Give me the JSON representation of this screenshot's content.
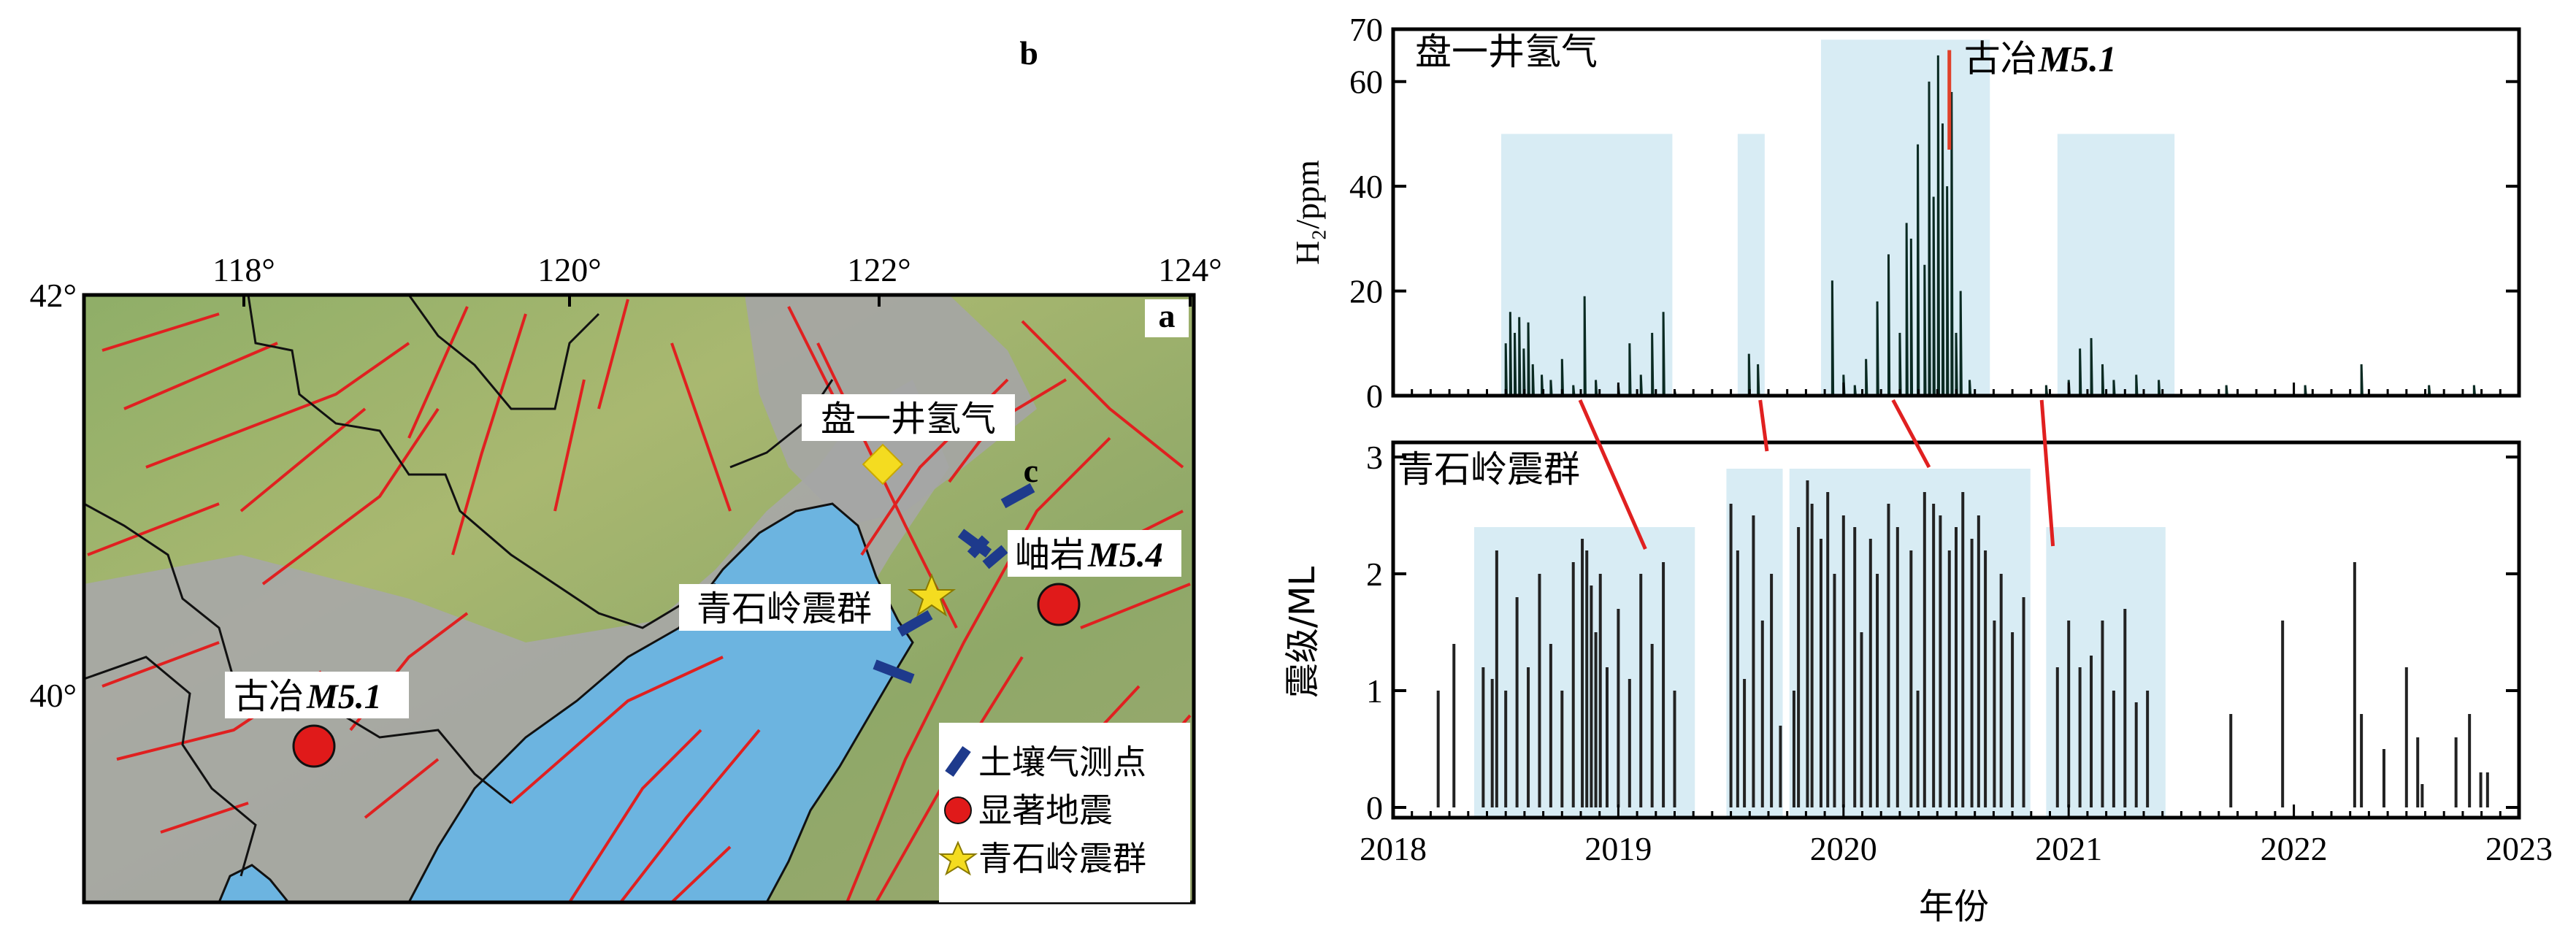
{
  "panel_a": {
    "letter": "a",
    "lon_ticks": [
      "118°",
      "120°",
      "122°",
      "124°"
    ],
    "lat_ticks": [
      "42°",
      "40°"
    ],
    "labels": {
      "panshan": "盘一井氢气",
      "qingshiling": "青石岭震群",
      "xiuyan": "岫岩",
      "xiuyan_mag": "M5.4",
      "guye": "古冶",
      "guye_mag": "M5.1"
    },
    "legend": [
      {
        "symbol": "blue-bar",
        "label": "土壤气测点"
      },
      {
        "symbol": "red-circle",
        "label": "显著地震"
      },
      {
        "symbol": "yellow-star",
        "label": "青石岭震群"
      }
    ],
    "colors": {
      "sea": "#6cb4e0",
      "fault": "#e02020",
      "boundary": "#111111",
      "yellow": "#f4dc20",
      "blue": "#1e3a8c",
      "red": "#e01a1a"
    }
  },
  "chart_data": [
    {
      "type": "line",
      "panel": "b",
      "title": "盘一井氢气",
      "ylabel": "H₂/ppm",
      "ylim": [
        0,
        70
      ],
      "yticks": [
        "0",
        "20",
        "40",
        "60",
        "70"
      ],
      "xlim": [
        2018,
        2023
      ],
      "annotation": {
        "text_cn": "古冶",
        "text_mag": "M5.1",
        "x": 2020.47
      },
      "shaded_periods": [
        [
          2018.48,
          2019.24,
          50
        ],
        [
          2019.53,
          2019.65,
          50
        ],
        [
          2019.9,
          2020.65,
          68
        ],
        [
          2020.95,
          2021.47,
          50
        ]
      ],
      "series": [
        {
          "values_note": "",
          "points": [
            [
              2018.5,
              10
            ],
            [
              2018.52,
              16
            ],
            [
              2018.54,
              12
            ],
            [
              2018.56,
              15
            ],
            [
              2018.58,
              9
            ],
            [
              2018.6,
              14
            ],
            [
              2018.62,
              6
            ],
            [
              2018.66,
              4
            ],
            [
              2018.7,
              3
            ],
            [
              2018.75,
              7
            ],
            [
              2018.8,
              2
            ],
            [
              2018.85,
              19
            ],
            [
              2018.9,
              3
            ],
            [
              2019.0,
              2
            ],
            [
              2019.05,
              10
            ],
            [
              2019.1,
              4
            ],
            [
              2019.15,
              12
            ],
            [
              2019.2,
              16
            ],
            [
              2019.25,
              1
            ],
            [
              2019.58,
              8
            ],
            [
              2019.62,
              6
            ],
            [
              2019.95,
              22
            ],
            [
              2020.0,
              4
            ],
            [
              2020.05,
              2
            ],
            [
              2020.1,
              7
            ],
            [
              2020.15,
              18
            ],
            [
              2020.2,
              27
            ],
            [
              2020.25,
              12
            ],
            [
              2020.28,
              33
            ],
            [
              2020.3,
              30
            ],
            [
              2020.33,
              48
            ],
            [
              2020.36,
              25
            ],
            [
              2020.38,
              60
            ],
            [
              2020.4,
              38
            ],
            [
              2020.42,
              65
            ],
            [
              2020.44,
              52
            ],
            [
              2020.46,
              40
            ],
            [
              2020.48,
              58
            ],
            [
              2020.5,
              12
            ],
            [
              2020.52,
              20
            ],
            [
              2020.56,
              3
            ],
            [
              2020.9,
              2
            ],
            [
              2021.0,
              3
            ],
            [
              2021.05,
              9
            ],
            [
              2021.1,
              11
            ],
            [
              2021.15,
              6
            ],
            [
              2021.2,
              3
            ],
            [
              2021.3,
              4
            ],
            [
              2021.4,
              3
            ],
            [
              2021.7,
              2
            ],
            [
              2022.05,
              2
            ],
            [
              2022.3,
              6
            ],
            [
              2022.6,
              2
            ],
            [
              2022.8,
              2
            ]
          ]
        }
      ]
    },
    {
      "type": "bar",
      "panel": "c",
      "title": "青石岭震群",
      "ylabel": "震级/ML",
      "xlabel": "年份",
      "ylim": [
        0,
        3
      ],
      "yticks": [
        "0",
        "1",
        "2",
        "3"
      ],
      "xlim": [
        2018,
        2023
      ],
      "xticks": [
        "2018",
        "2019",
        "2020",
        "2021",
        "2022",
        "2023"
      ],
      "shaded_periods": [
        [
          2018.36,
          2019.34,
          2.4
        ],
        [
          2019.48,
          2019.73,
          2.9
        ],
        [
          2019.76,
          2020.83,
          2.9
        ],
        [
          2020.9,
          2021.43,
          2.4
        ]
      ],
      "events": [
        [
          2018.2,
          1.0
        ],
        [
          2018.27,
          1.4
        ],
        [
          2018.4,
          1.2
        ],
        [
          2018.44,
          1.1
        ],
        [
          2018.46,
          2.2
        ],
        [
          2018.5,
          1.0
        ],
        [
          2018.55,
          1.8
        ],
        [
          2018.6,
          1.2
        ],
        [
          2018.65,
          2.0
        ],
        [
          2018.7,
          1.4
        ],
        [
          2018.75,
          1.0
        ],
        [
          2018.8,
          2.1
        ],
        [
          2018.84,
          2.3
        ],
        [
          2018.86,
          2.2
        ],
        [
          2018.88,
          1.9
        ],
        [
          2018.9,
          1.5
        ],
        [
          2018.92,
          2.0
        ],
        [
          2018.95,
          1.2
        ],
        [
          2019.0,
          1.7
        ],
        [
          2019.05,
          1.1
        ],
        [
          2019.1,
          2.0
        ],
        [
          2019.15,
          1.4
        ],
        [
          2019.2,
          2.1
        ],
        [
          2019.25,
          1.0
        ],
        [
          2019.5,
          2.6
        ],
        [
          2019.53,
          2.2
        ],
        [
          2019.56,
          1.1
        ],
        [
          2019.6,
          2.5
        ],
        [
          2019.64,
          1.6
        ],
        [
          2019.68,
          2.0
        ],
        [
          2019.72,
          0.7
        ],
        [
          2019.78,
          1.0
        ],
        [
          2019.8,
          2.4
        ],
        [
          2019.84,
          2.8
        ],
        [
          2019.86,
          2.6
        ],
        [
          2019.9,
          2.3
        ],
        [
          2019.93,
          2.7
        ],
        [
          2019.96,
          2.0
        ],
        [
          2020.0,
          2.5
        ],
        [
          2020.05,
          2.4
        ],
        [
          2020.08,
          1.5
        ],
        [
          2020.12,
          2.3
        ],
        [
          2020.15,
          2.0
        ],
        [
          2020.2,
          2.6
        ],
        [
          2020.24,
          2.4
        ],
        [
          2020.3,
          2.2
        ],
        [
          2020.33,
          1.0
        ],
        [
          2020.36,
          2.7
        ],
        [
          2020.4,
          2.6
        ],
        [
          2020.43,
          2.5
        ],
        [
          2020.47,
          2.2
        ],
        [
          2020.5,
          2.4
        ],
        [
          2020.53,
          2.7
        ],
        [
          2020.57,
          2.3
        ],
        [
          2020.6,
          2.5
        ],
        [
          2020.63,
          2.2
        ],
        [
          2020.67,
          1.6
        ],
        [
          2020.7,
          2.0
        ],
        [
          2020.75,
          1.5
        ],
        [
          2020.8,
          1.8
        ],
        [
          2020.95,
          1.2
        ],
        [
          2021.0,
          1.6
        ],
        [
          2021.05,
          1.2
        ],
        [
          2021.1,
          1.3
        ],
        [
          2021.15,
          1.6
        ],
        [
          2021.2,
          1.0
        ],
        [
          2021.25,
          1.7
        ],
        [
          2021.3,
          0.9
        ],
        [
          2021.35,
          1.0
        ],
        [
          2021.72,
          0.8
        ],
        [
          2021.95,
          1.6
        ],
        [
          2022.27,
          2.1
        ],
        [
          2022.3,
          0.8
        ],
        [
          2022.4,
          0.5
        ],
        [
          2022.5,
          1.2
        ],
        [
          2022.55,
          0.6
        ],
        [
          2022.57,
          0.2
        ],
        [
          2022.72,
          0.6
        ],
        [
          2022.78,
          0.8
        ],
        [
          2022.83,
          0.3
        ],
        [
          2022.86,
          0.3
        ]
      ]
    }
  ],
  "connectors": {
    "color": "#e02020"
  }
}
